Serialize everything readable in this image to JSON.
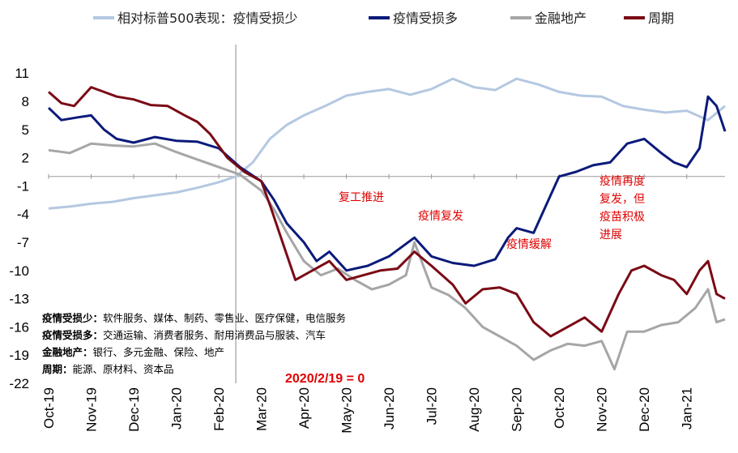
{
  "chart_data": {
    "type": "line",
    "title": "",
    "xlabel": "",
    "ylabel": "",
    "ylim": [
      -22,
      13
    ],
    "yticks": [
      11,
      8,
      5,
      2,
      -1,
      -4,
      -7,
      -10,
      -13,
      -16,
      -19,
      -22
    ],
    "xticks": [
      "Oct-19",
      "Nov-19",
      "Dec-19",
      "Jan-20",
      "Feb-20",
      "Mar-20",
      "Apr-20",
      "May-20",
      "Jun-20",
      "Jul-20",
      "Aug-20",
      "Sep-20",
      "Oct-20",
      "Nov-20",
      "Dec-20",
      "Jan-21"
    ],
    "x_end_index": 15.9,
    "series": [
      {
        "name": "相对标普500表现：疫情受损少",
        "color": "#b4c8e0",
        "points": [
          [
            0,
            -3.4
          ],
          [
            0.5,
            -3.2
          ],
          [
            1,
            -2.9
          ],
          [
            1.5,
            -2.7
          ],
          [
            2,
            -2.3
          ],
          [
            2.5,
            -2.0
          ],
          [
            3,
            -1.7
          ],
          [
            3.5,
            -1.2
          ],
          [
            4,
            -0.6
          ],
          [
            4.4,
            0.0
          ],
          [
            4.8,
            1.5
          ],
          [
            5.2,
            4.0
          ],
          [
            5.6,
            5.5
          ],
          [
            6,
            6.5
          ],
          [
            6.5,
            7.5
          ],
          [
            7,
            8.6
          ],
          [
            7.5,
            9.0
          ],
          [
            8,
            9.3
          ],
          [
            8.5,
            8.7
          ],
          [
            9,
            9.3
          ],
          [
            9.5,
            10.4
          ],
          [
            10,
            9.5
          ],
          [
            10.5,
            9.2
          ],
          [
            11,
            10.4
          ],
          [
            11.5,
            9.8
          ],
          [
            12,
            9.0
          ],
          [
            12.5,
            8.6
          ],
          [
            13,
            8.5
          ],
          [
            13.5,
            7.5
          ],
          [
            14,
            7.1
          ],
          [
            14.5,
            6.8
          ],
          [
            15,
            7.0
          ],
          [
            15.5,
            6.0
          ],
          [
            15.9,
            7.5
          ]
        ]
      },
      {
        "name": "疫情受损多",
        "color": "#0b1a7a",
        "points": [
          [
            0,
            7.3
          ],
          [
            0.3,
            6.0
          ],
          [
            0.7,
            6.3
          ],
          [
            1,
            6.5
          ],
          [
            1.3,
            5.0
          ],
          [
            1.6,
            4.0
          ],
          [
            2,
            3.6
          ],
          [
            2.5,
            4.2
          ],
          [
            3,
            3.8
          ],
          [
            3.5,
            3.7
          ],
          [
            4,
            3.0
          ],
          [
            4.5,
            1.0
          ],
          [
            5,
            -0.5
          ],
          [
            5.3,
            -2.5
          ],
          [
            5.6,
            -5.0
          ],
          [
            6,
            -7.0
          ],
          [
            6.3,
            -9.0
          ],
          [
            6.6,
            -8.0
          ],
          [
            7,
            -10.0
          ],
          [
            7.5,
            -9.5
          ],
          [
            8,
            -8.5
          ],
          [
            8.3,
            -7.5
          ],
          [
            8.6,
            -6.5
          ],
          [
            9,
            -8.5
          ],
          [
            9.5,
            -9.2
          ],
          [
            10,
            -9.5
          ],
          [
            10.5,
            -8.8
          ],
          [
            10.8,
            -6.5
          ],
          [
            11,
            -5.5
          ],
          [
            11.4,
            -6.0
          ],
          [
            11.7,
            -3.0
          ],
          [
            12,
            0.0
          ],
          [
            12.4,
            0.5
          ],
          [
            12.8,
            1.2
          ],
          [
            13.2,
            1.5
          ],
          [
            13.6,
            3.5
          ],
          [
            14,
            4.0
          ],
          [
            14.4,
            2.5
          ],
          [
            14.7,
            1.5
          ],
          [
            15,
            1.0
          ],
          [
            15.3,
            3.0
          ],
          [
            15.5,
            8.5
          ],
          [
            15.7,
            7.5
          ],
          [
            15.9,
            4.8
          ]
        ]
      },
      {
        "name": "金融地产",
        "color": "#a6a6a6",
        "points": [
          [
            0,
            2.8
          ],
          [
            0.5,
            2.5
          ],
          [
            1,
            3.5
          ],
          [
            1.5,
            3.3
          ],
          [
            2,
            3.2
          ],
          [
            2.5,
            3.5
          ],
          [
            3,
            2.6
          ],
          [
            3.5,
            1.8
          ],
          [
            4,
            1.0
          ],
          [
            4.5,
            0.2
          ],
          [
            5,
            -1.5
          ],
          [
            5.3,
            -3.5
          ],
          [
            5.6,
            -6.0
          ],
          [
            6,
            -9.0
          ],
          [
            6.4,
            -10.5
          ],
          [
            6.8,
            -9.8
          ],
          [
            7.2,
            -11.0
          ],
          [
            7.6,
            -12.0
          ],
          [
            8,
            -11.5
          ],
          [
            8.4,
            -10.5
          ],
          [
            8.6,
            -7.0
          ],
          [
            9,
            -11.8
          ],
          [
            9.4,
            -12.6
          ],
          [
            9.8,
            -14.0
          ],
          [
            10.2,
            -16.0
          ],
          [
            10.6,
            -17.0
          ],
          [
            11,
            -18.0
          ],
          [
            11.4,
            -19.5
          ],
          [
            11.8,
            -18.5
          ],
          [
            12.2,
            -17.8
          ],
          [
            12.6,
            -18.0
          ],
          [
            13,
            -17.5
          ],
          [
            13.3,
            -20.5
          ],
          [
            13.6,
            -16.5
          ],
          [
            14,
            -16.5
          ],
          [
            14.4,
            -15.8
          ],
          [
            14.8,
            -15.5
          ],
          [
            15.2,
            -14.0
          ],
          [
            15.5,
            -12.0
          ],
          [
            15.7,
            -15.5
          ],
          [
            15.9,
            -15.2
          ]
        ]
      },
      {
        "name": "周期",
        "color": "#7a0a14",
        "points": [
          [
            0,
            9.0
          ],
          [
            0.3,
            7.8
          ],
          [
            0.6,
            7.5
          ],
          [
            1,
            9.5
          ],
          [
            1.3,
            9.0
          ],
          [
            1.6,
            8.5
          ],
          [
            2,
            8.2
          ],
          [
            2.4,
            7.6
          ],
          [
            2.8,
            7.5
          ],
          [
            3.2,
            6.5
          ],
          [
            3.5,
            5.8
          ],
          [
            3.8,
            4.5
          ],
          [
            4.2,
            2.0
          ],
          [
            4.6,
            0.5
          ],
          [
            5,
            -0.5
          ],
          [
            5.2,
            -3.0
          ],
          [
            5.5,
            -7.0
          ],
          [
            5.8,
            -11.0
          ],
          [
            6.2,
            -10.0
          ],
          [
            6.6,
            -9.0
          ],
          [
            7,
            -11.0
          ],
          [
            7.4,
            -10.5
          ],
          [
            7.8,
            -10.0
          ],
          [
            8.2,
            -9.8
          ],
          [
            8.6,
            -8.0
          ],
          [
            9,
            -9.5
          ],
          [
            9.5,
            -11.5
          ],
          [
            9.8,
            -13.5
          ],
          [
            10.2,
            -12.0
          ],
          [
            10.6,
            -11.8
          ],
          [
            11,
            -12.5
          ],
          [
            11.4,
            -15.5
          ],
          [
            11.8,
            -17.0
          ],
          [
            12.2,
            -16.0
          ],
          [
            12.6,
            -15.0
          ],
          [
            13,
            -16.5
          ],
          [
            13.4,
            -12.5
          ],
          [
            13.7,
            -10.0
          ],
          [
            14,
            -9.5
          ],
          [
            14.4,
            -10.5
          ],
          [
            14.7,
            -11.0
          ],
          [
            15,
            -12.5
          ],
          [
            15.3,
            -10.0
          ],
          [
            15.5,
            -9.0
          ],
          [
            15.7,
            -12.5
          ],
          [
            15.9,
            -13.0
          ]
        ]
      }
    ],
    "annotations": {
      "phase1": "复工推进",
      "phase2": "疫情复发",
      "phase3": "疫情缓解",
      "phase4_lines": [
        "疫情再度",
        "复发，但",
        "疫苗积极",
        "进展"
      ],
      "zero_note": "2020/2/19 = 0"
    }
  },
  "notes": [
    {
      "label": "疫情受损少：",
      "text": "软件服务、媒体、制药、零售业、医疗保健，电信服务"
    },
    {
      "label": "疫情受损多：",
      "text": "交通运输、消费者服务、耐用消费品与服装、汽车"
    },
    {
      "label": "金融地产：",
      "text": "银行、多元金融、保险、地产"
    },
    {
      "label": "周期：",
      "text": "能源、原材料、资本品"
    }
  ]
}
